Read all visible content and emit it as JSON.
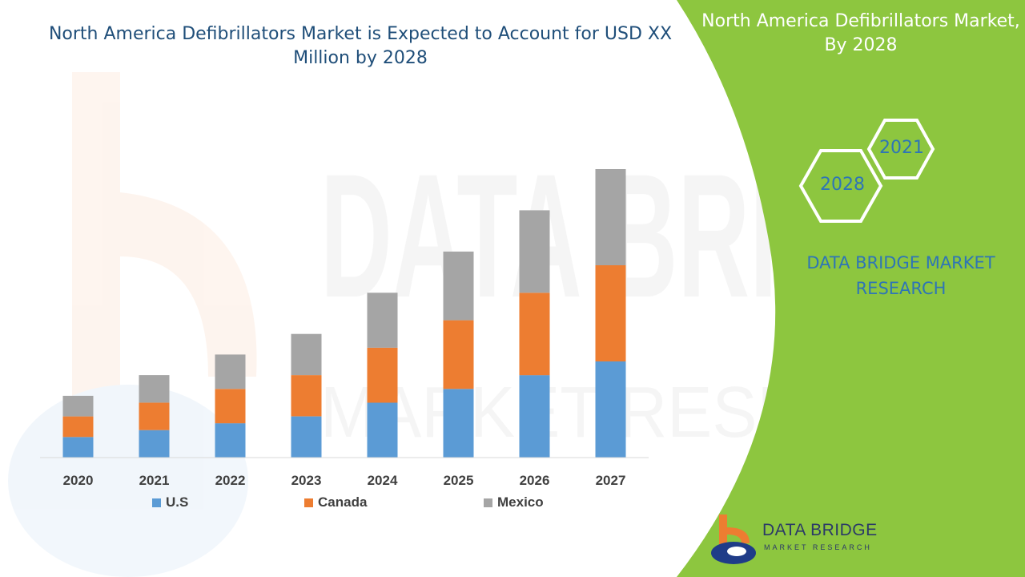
{
  "title": "North America Defibrillators Market is Expected to Account for USD  XX Million by 2028",
  "panel": {
    "title": "North America Defibrillators Market, By 2028",
    "hex_year_a": "2021",
    "hex_year_b": "2028",
    "brand_text": "DATA BRIDGE MARKET RESEARCH"
  },
  "logo": {
    "name": "DATA BRIDGE",
    "tagline": "MARKET RESEARCH"
  },
  "colors": {
    "us": "#5b9bd5",
    "canada": "#ed7d31",
    "mexico": "#a5a5a5",
    "panel_green": "#8dc63f",
    "title_blue": "#1f4e79"
  },
  "chart_data": {
    "type": "bar",
    "stacked": true,
    "categories": [
      "2020",
      "2021",
      "2022",
      "2023",
      "2024",
      "2025",
      "2026",
      "2027"
    ],
    "series": [
      {
        "name": "U.S",
        "values": [
          1.5,
          2.0,
          2.5,
          3.0,
          4.0,
          5.0,
          6.0,
          7.0
        ]
      },
      {
        "name": "Canada",
        "values": [
          1.5,
          2.0,
          2.5,
          3.0,
          4.0,
          5.0,
          6.0,
          7.0
        ]
      },
      {
        "name": "Mexico",
        "values": [
          1.5,
          2.0,
          2.5,
          3.0,
          4.0,
          5.0,
          6.0,
          7.0
        ]
      }
    ],
    "legend_position": "bottom",
    "grid": false,
    "ylim": [
      0,
      21
    ]
  }
}
